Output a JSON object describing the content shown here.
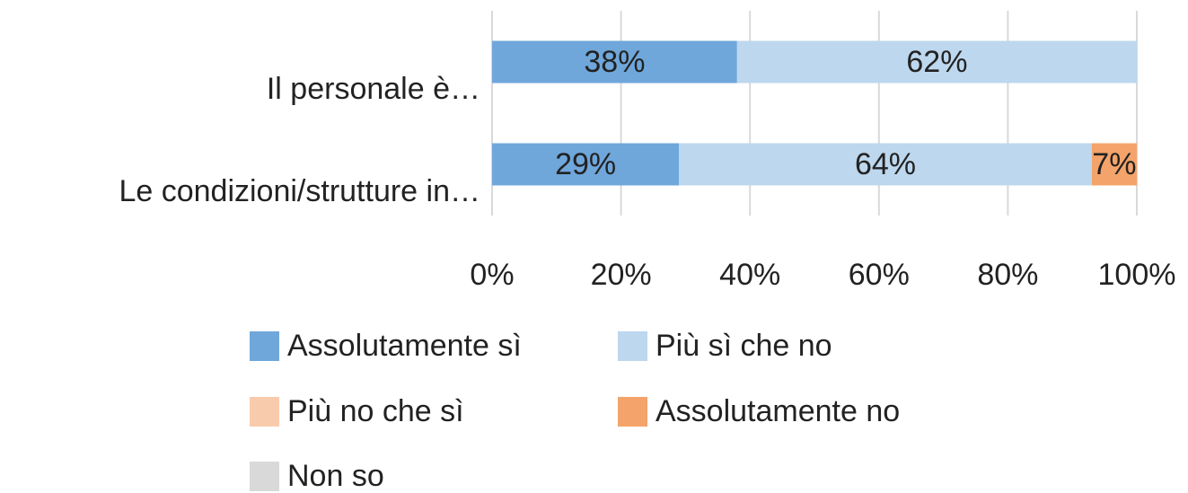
{
  "chart_data": {
    "type": "stacked-bar-horizontal",
    "categories": [
      "Il personale è…",
      "Le condizioni/strutture in…"
    ],
    "series": [
      {
        "name": "Assolutamente sì",
        "color": "#6fa7db",
        "values": [
          38,
          29
        ],
        "value_labels": [
          "38%",
          "29%"
        ]
      },
      {
        "name": "Più sì che no",
        "color": "#bdd7ee",
        "values": [
          62,
          64
        ],
        "value_labels": [
          "62%",
          "64%"
        ]
      },
      {
        "name": "Più no che sì",
        "color": "#f8cbad",
        "values": [
          0,
          0
        ],
        "value_labels": [
          null,
          null
        ]
      },
      {
        "name": "Assolutamente no",
        "color": "#f4a46a",
        "values": [
          0,
          7
        ],
        "value_labels": [
          null,
          "7%"
        ]
      },
      {
        "name": "Non so",
        "color": "#d9d9d9",
        "values": [
          0,
          0
        ],
        "value_labels": [
          null,
          null
        ]
      }
    ],
    "xlim": [
      0,
      100
    ],
    "xticks": [
      {
        "value": 0,
        "label": "0%"
      },
      {
        "value": 20,
        "label": "20%"
      },
      {
        "value": 40,
        "label": "40%"
      },
      {
        "value": 60,
        "label": "60%"
      },
      {
        "value": 80,
        "label": "80%"
      },
      {
        "value": 100,
        "label": "100%"
      }
    ],
    "grid": true
  }
}
